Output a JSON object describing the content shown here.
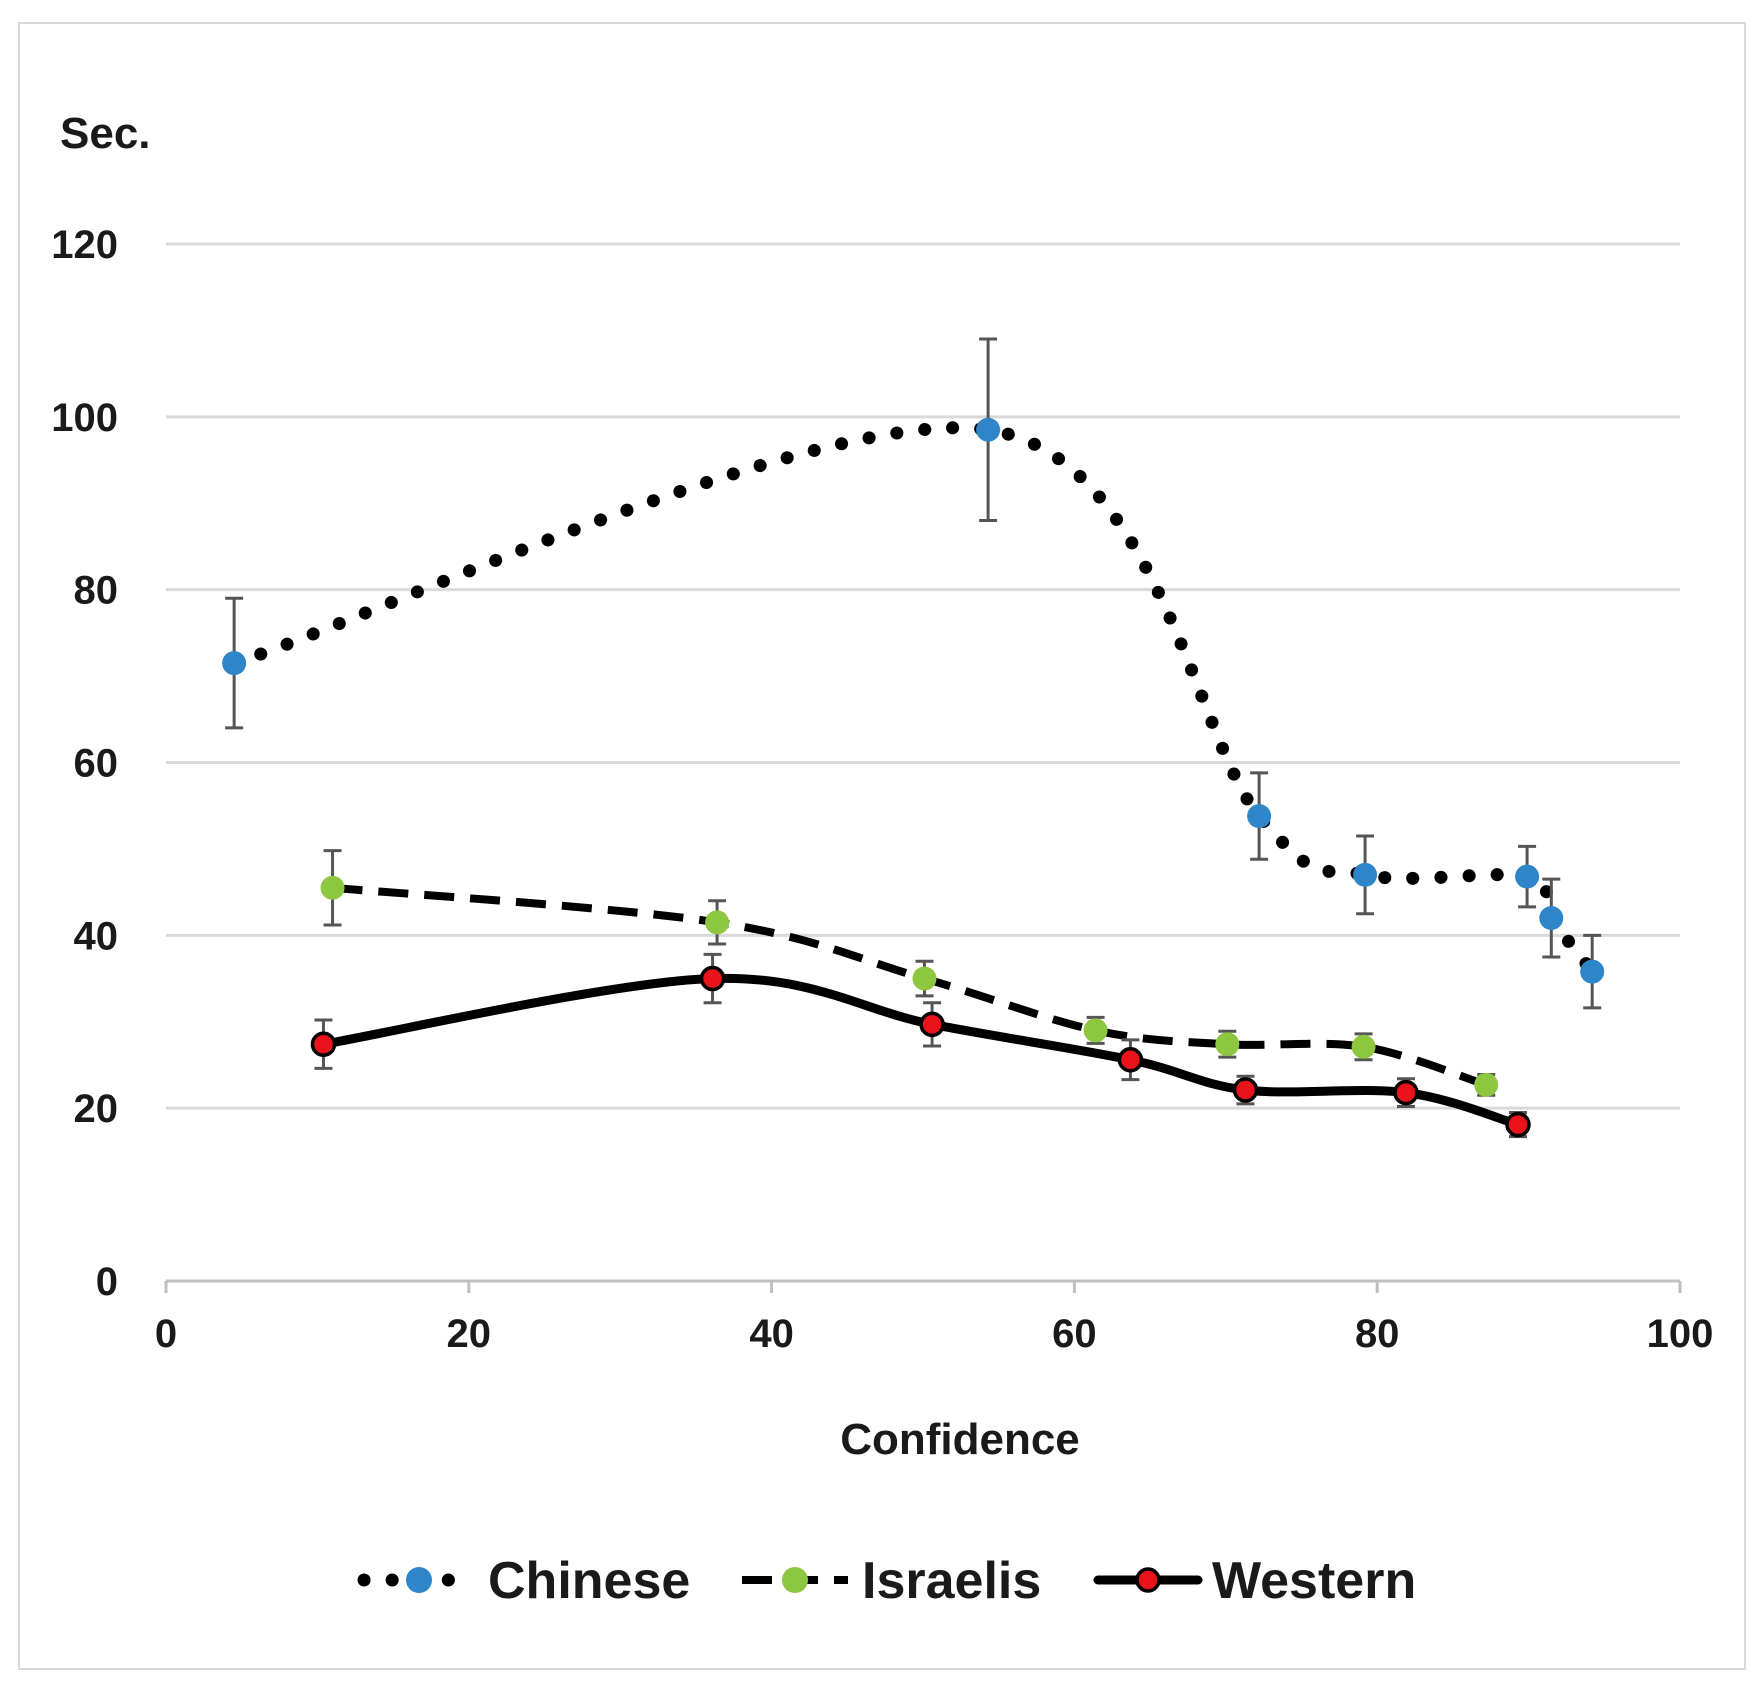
{
  "chart_data": {
    "type": "line",
    "title": "",
    "xlabel": "Confidence",
    "ylabel": "Sec.",
    "xlim": [
      0,
      100
    ],
    "ylim": [
      0,
      120
    ],
    "x_ticks": [
      0,
      20,
      40,
      60,
      80,
      100
    ],
    "y_ticks": [
      0,
      20,
      40,
      60,
      80,
      100,
      120
    ],
    "grid": true,
    "legend_position": "bottom",
    "series": [
      {
        "name": "Chinese",
        "line_style": "dotted",
        "marker_color": "#2e86c8",
        "points": [
          {
            "x": 4.5,
            "y": 71.5,
            "err": 7.5
          },
          {
            "x": 54.3,
            "y": 98.5,
            "err": 10.5
          },
          {
            "x": 72.2,
            "y": 53.8,
            "err": 5
          },
          {
            "x": 79.2,
            "y": 47,
            "err": 4.5
          },
          {
            "x": 89.9,
            "y": 46.8,
            "err": 3.5
          },
          {
            "x": 91.5,
            "y": 42,
            "err": 4.5
          },
          {
            "x": 94.2,
            "y": 35.8,
            "err": 4.2
          }
        ]
      },
      {
        "name": "Israelis",
        "line_style": "dashed",
        "marker_color": "#8dc63f",
        "points": [
          {
            "x": 11,
            "y": 45.5,
            "err": 4.3
          },
          {
            "x": 36.4,
            "y": 41.5,
            "err": 2.5
          },
          {
            "x": 50.1,
            "y": 35,
            "err": 2
          },
          {
            "x": 61.4,
            "y": 29,
            "err": 1.5
          },
          {
            "x": 70.1,
            "y": 27.4,
            "err": 1.5
          },
          {
            "x": 79.1,
            "y": 27.1,
            "err": 1.5
          },
          {
            "x": 87.2,
            "y": 22.7,
            "err": 1.2
          }
        ]
      },
      {
        "name": "Western",
        "line_style": "solid",
        "marker_color": "#e8131b",
        "points": [
          {
            "x": 10.4,
            "y": 27.4,
            "err": 2.8
          },
          {
            "x": 36.1,
            "y": 35,
            "err": 2.8
          },
          {
            "x": 50.6,
            "y": 29.7,
            "err": 2.5
          },
          {
            "x": 63.7,
            "y": 25.6,
            "err": 2.3
          },
          {
            "x": 71.3,
            "y": 22.1,
            "err": 1.6
          },
          {
            "x": 81.9,
            "y": 21.8,
            "err": 1.6
          },
          {
            "x": 89.3,
            "y": 18.1,
            "err": 1.4
          }
        ]
      }
    ]
  }
}
